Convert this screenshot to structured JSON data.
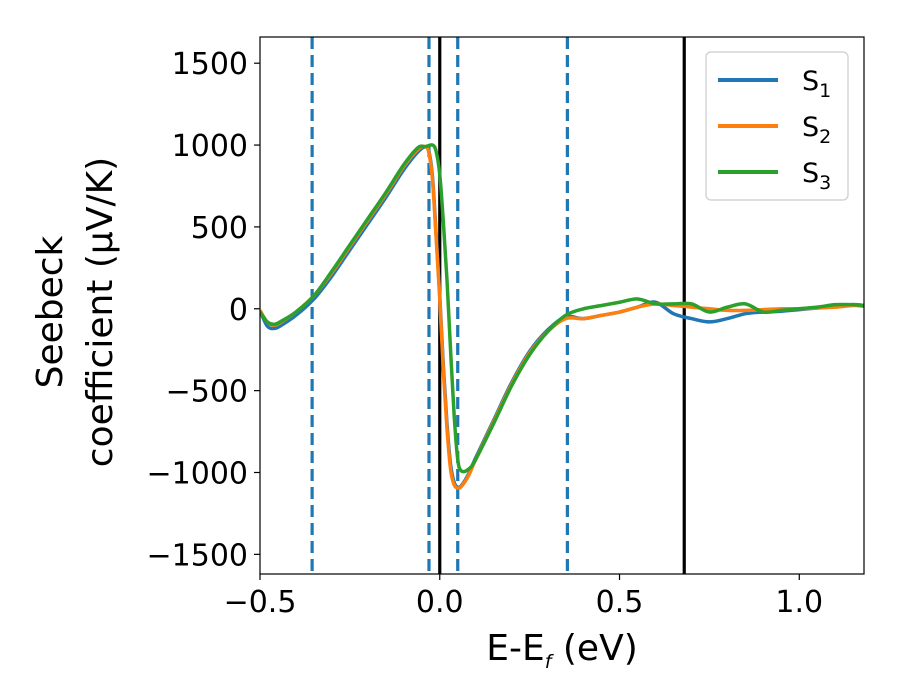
{
  "chart_data": {
    "type": "line",
    "xlabel": "E-E$_f$ (eV)",
    "xlabel_main": "E-E",
    "xlabel_sub": "f",
    "xlabel_unit": " (eV)",
    "ylabel_line1": "Seebeck",
    "ylabel_line2": "coefficient  (μV/K)",
    "xlim": [
      -0.5,
      1.18
    ],
    "ylim": [
      -1620,
      1660
    ],
    "xticks": [
      -0.5,
      0.0,
      0.5,
      1.0
    ],
    "xtick_labels": [
      "−0.5",
      "0.0",
      "0.5",
      "1.0"
    ],
    "yticks": [
      -1500,
      -1000,
      -500,
      0,
      500,
      1000,
      1500
    ],
    "ytick_labels": [
      "−1500",
      "−1000",
      "−500",
      "0",
      "500",
      "1000",
      "1500"
    ],
    "grid": false,
    "legend_position": "top-right",
    "series": [
      {
        "name": "S1",
        "label_main": "S",
        "label_sub": "1",
        "color": "#1f77b4",
        "x": [
          -0.5,
          -0.48,
          -0.46,
          -0.44,
          -0.4,
          -0.35,
          -0.3,
          -0.25,
          -0.2,
          -0.15,
          -0.1,
          -0.06,
          -0.04,
          -0.03,
          -0.02,
          -0.01,
          0.0,
          0.01,
          0.02,
          0.03,
          0.04,
          0.05,
          0.06,
          0.08,
          0.1,
          0.15,
          0.2,
          0.25,
          0.3,
          0.35,
          0.4,
          0.45,
          0.5,
          0.55,
          0.6,
          0.65,
          0.7,
          0.75,
          0.8,
          0.85,
          0.9,
          0.95,
          1.0,
          1.05,
          1.1,
          1.15,
          1.18
        ],
        "y": [
          -10,
          -105,
          -120,
          -100,
          -40,
          60,
          200,
          360,
          520,
          680,
          850,
          960,
          990,
          960,
          800,
          450,
          80,
          -350,
          -700,
          -950,
          -1060,
          -1090,
          -1080,
          -1010,
          -910,
          -680,
          -450,
          -260,
          -130,
          -50,
          -60,
          -40,
          -20,
          10,
          40,
          -30,
          -60,
          -80,
          -60,
          -30,
          -20,
          -15,
          -5,
          5,
          15,
          25,
          20
        ]
      },
      {
        "name": "S2",
        "label_main": "S",
        "label_sub": "2",
        "color": "#ff7f0e",
        "x": [
          -0.5,
          -0.48,
          -0.46,
          -0.44,
          -0.4,
          -0.35,
          -0.3,
          -0.25,
          -0.2,
          -0.15,
          -0.1,
          -0.06,
          -0.04,
          -0.03,
          -0.02,
          -0.01,
          0.0,
          0.01,
          0.02,
          0.03,
          0.04,
          0.05,
          0.06,
          0.08,
          0.1,
          0.15,
          0.2,
          0.25,
          0.3,
          0.35,
          0.4,
          0.45,
          0.5,
          0.55,
          0.6,
          0.65,
          0.7,
          0.75,
          0.8,
          0.85,
          0.9,
          0.95,
          1.0,
          1.05,
          1.1,
          1.15,
          1.18
        ],
        "y": [
          -10,
          -80,
          -100,
          -80,
          -20,
          80,
          220,
          380,
          540,
          700,
          870,
          975,
          990,
          950,
          780,
          430,
          60,
          -380,
          -730,
          -980,
          -1075,
          -1095,
          -1085,
          -1020,
          -920,
          -690,
          -460,
          -270,
          -140,
          -60,
          -60,
          -40,
          -20,
          10,
          30,
          20,
          10,
          0,
          -10,
          -10,
          -5,
          0,
          0,
          5,
          10,
          20,
          15
        ]
      },
      {
        "name": "S3",
        "label_main": "S",
        "label_sub": "3",
        "color": "#2ca02c",
        "x": [
          -0.5,
          -0.48,
          -0.46,
          -0.44,
          -0.4,
          -0.35,
          -0.3,
          -0.25,
          -0.2,
          -0.15,
          -0.1,
          -0.06,
          -0.04,
          -0.02,
          -0.01,
          0.0,
          0.01,
          0.02,
          0.03,
          0.04,
          0.05,
          0.06,
          0.08,
          0.1,
          0.15,
          0.2,
          0.25,
          0.3,
          0.35,
          0.4,
          0.45,
          0.5,
          0.55,
          0.6,
          0.65,
          0.7,
          0.75,
          0.8,
          0.85,
          0.9,
          0.95,
          1.0,
          1.05,
          1.1,
          1.15,
          1.18
        ],
        "y": [
          -20,
          -80,
          -95,
          -75,
          -20,
          80,
          230,
          390,
          550,
          710,
          880,
          985,
          990,
          1000,
          960,
          820,
          530,
          180,
          -250,
          -650,
          -920,
          -990,
          -980,
          -920,
          -700,
          -470,
          -280,
          -140,
          -40,
          0,
          20,
          40,
          60,
          30,
          30,
          30,
          -20,
          10,
          30,
          -20,
          -10,
          0,
          10,
          25,
          25,
          20
        ]
      }
    ],
    "vlines": [
      {
        "x": -0.355,
        "style": "dashed",
        "color": "#1f77b4"
      },
      {
        "x": -0.03,
        "style": "dashed",
        "color": "#1f77b4"
      },
      {
        "x": 0.05,
        "style": "dashed",
        "color": "#1f77b4"
      },
      {
        "x": 0.355,
        "style": "dashed",
        "color": "#1f77b4"
      },
      {
        "x": 0.0,
        "style": "solid",
        "color": "#000000"
      },
      {
        "x": 0.68,
        "style": "solid",
        "color": "#000000"
      }
    ]
  }
}
